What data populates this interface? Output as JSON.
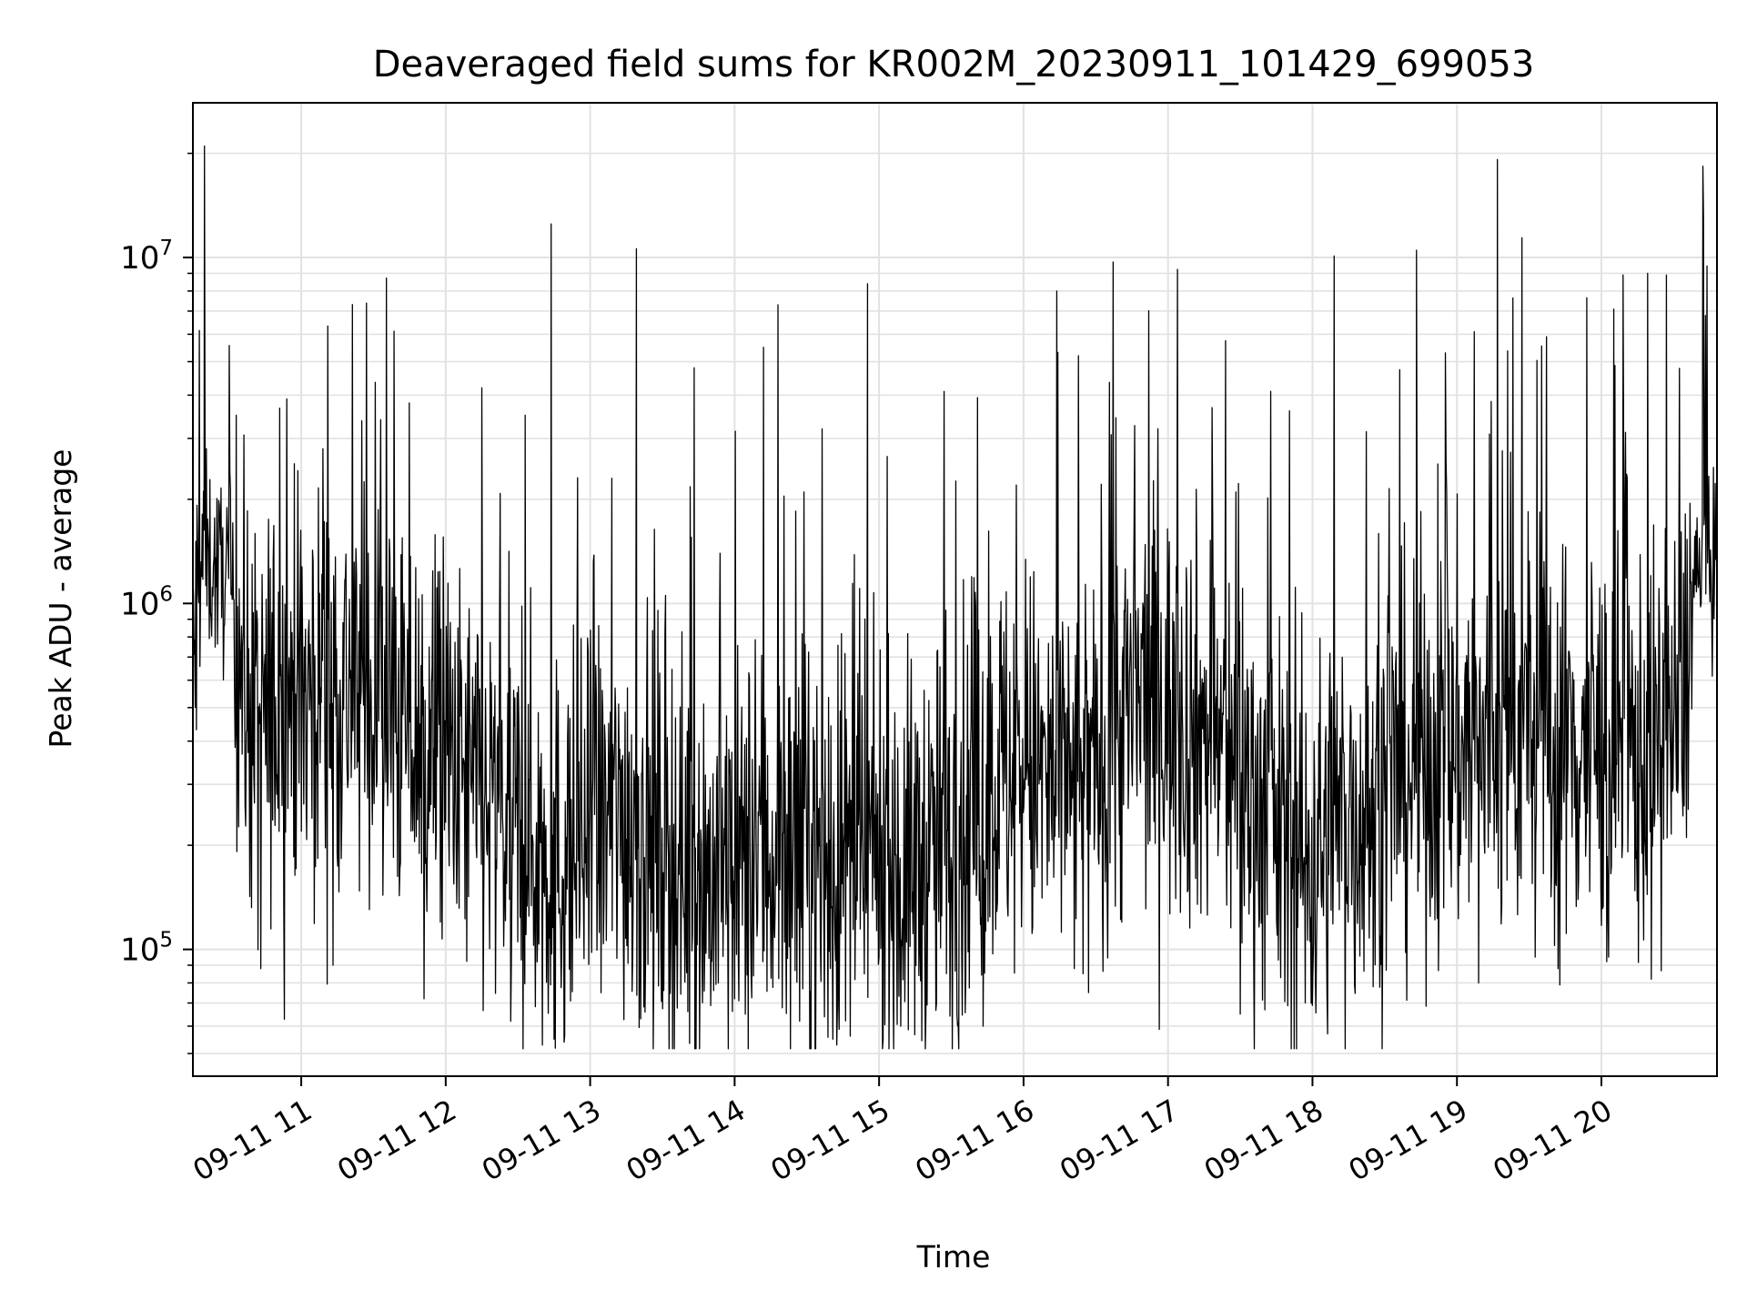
{
  "chart_data": {
    "type": "line",
    "title": "Deaveraged field sums for KR002M_20230911_101429_699053",
    "xlabel": "Time",
    "ylabel": "Peak ADU - average",
    "x_tick_labels": [
      "09-11 11",
      "09-11 12",
      "09-11 13",
      "09-11 14",
      "09-11 15",
      "09-11 16",
      "09-11 17",
      "09-11 18",
      "09-11 19",
      "09-11 20"
    ],
    "x_ticks_hours": [
      11,
      12,
      13,
      14,
      15,
      16,
      17,
      18,
      19,
      20
    ],
    "xlim_hours": [
      10.25,
      20.8
    ],
    "y_scale": "log",
    "y_tick_labels": [
      {
        "value": 100000,
        "base": "10",
        "exp": "5"
      },
      {
        "value": 1000000,
        "base": "10",
        "exp": "6"
      },
      {
        "value": 10000000,
        "base": "10",
        "exp": "7"
      }
    ],
    "ylim": [
      43000,
      28000000
    ],
    "grid": true,
    "line_color": "#000000",
    "series": [
      {
        "points": [
          [
            10.25,
            600000
          ],
          [
            10.32,
            1400000
          ],
          [
            10.4,
            1250000
          ],
          [
            10.5,
            1200000
          ],
          [
            10.6,
            600000
          ],
          [
            10.7,
            400000
          ],
          [
            10.85,
            550000
          ],
          [
            11.0,
            520000
          ],
          [
            11.2,
            600000
          ],
          [
            11.4,
            560000
          ],
          [
            11.6,
            500000
          ],
          [
            11.8,
            400000
          ],
          [
            12.0,
            350000
          ],
          [
            12.2,
            280000
          ],
          [
            12.4,
            230000
          ],
          [
            12.6,
            200000
          ],
          [
            12.8,
            180000
          ],
          [
            13.0,
            210000
          ],
          [
            13.2,
            250000
          ],
          [
            13.4,
            220000
          ],
          [
            13.6,
            180000
          ],
          [
            13.8,
            165000
          ],
          [
            14.0,
            170000
          ],
          [
            14.2,
            190000
          ],
          [
            14.4,
            200000
          ],
          [
            14.6,
            180000
          ],
          [
            14.8,
            170000
          ],
          [
            15.0,
            180000
          ],
          [
            15.2,
            170000
          ],
          [
            15.4,
            190000
          ],
          [
            15.6,
            230000
          ],
          [
            15.8,
            320000
          ],
          [
            16.0,
            330000
          ],
          [
            16.2,
            300000
          ],
          [
            16.4,
            280000
          ],
          [
            16.6,
            420000
          ],
          [
            16.8,
            520000
          ],
          [
            17.0,
            500000
          ],
          [
            17.2,
            450000
          ],
          [
            17.4,
            380000
          ],
          [
            17.6,
            280000
          ],
          [
            17.8,
            210000
          ],
          [
            18.0,
            190000
          ],
          [
            18.2,
            230000
          ],
          [
            18.4,
            270000
          ],
          [
            18.6,
            320000
          ],
          [
            18.8,
            360000
          ],
          [
            19.0,
            380000
          ],
          [
            19.2,
            400000
          ],
          [
            19.4,
            420000
          ],
          [
            19.6,
            400000
          ],
          [
            19.8,
            390000
          ],
          [
            20.0,
            380000
          ],
          [
            20.2,
            360000
          ],
          [
            20.4,
            350000
          ],
          [
            20.55,
            500000
          ],
          [
            20.65,
            1200000
          ],
          [
            20.8,
            1300000
          ]
        ],
        "spikes": [
          [
            10.33,
            21000000
          ],
          [
            10.55,
            3500000
          ],
          [
            10.9,
            3900000
          ],
          [
            11.15,
            2800000
          ],
          [
            11.55,
            3400000
          ],
          [
            11.85,
            3600000
          ],
          [
            12.25,
            4200000
          ],
          [
            12.55,
            3500000
          ],
          [
            12.73,
            12500000
          ],
          [
            13.15,
            2300000
          ],
          [
            13.32,
            10600000
          ],
          [
            13.72,
            4800000
          ],
          [
            14.2,
            5500000
          ],
          [
            14.3,
            7300000
          ],
          [
            14.48,
            2100000
          ],
          [
            14.92,
            8400000
          ],
          [
            15.45,
            4100000
          ],
          [
            15.95,
            2200000
          ],
          [
            16.23,
            8000000
          ],
          [
            16.38,
            5200000
          ],
          [
            16.62,
            9700000
          ],
          [
            16.93,
            3200000
          ],
          [
            17.47,
            2100000
          ],
          [
            17.95,
            4200000
          ],
          [
            18.15,
            10100000
          ],
          [
            18.42,
            4000000
          ],
          [
            18.72,
            10500000
          ],
          [
            18.92,
            5300000
          ],
          [
            19.12,
            6100000
          ],
          [
            19.28,
            19200000
          ],
          [
            19.45,
            11400000
          ],
          [
            19.62,
            5900000
          ],
          [
            20.15,
            8900000
          ],
          [
            20.32,
            9000000
          ],
          [
            20.45,
            8900000
          ],
          [
            20.72,
            6800000
          ]
        ],
        "dips": [
          [
            10.72,
            88000
          ],
          [
            11.22,
            90000
          ],
          [
            11.85,
            72000
          ],
          [
            12.45,
            62000
          ],
          [
            12.75,
            55000
          ],
          [
            13.35,
            63000
          ],
          [
            14.0,
            72000
          ],
          [
            14.45,
            62000
          ],
          [
            14.68,
            55000
          ],
          [
            15.15,
            60000
          ],
          [
            15.72,
            60000
          ],
          [
            16.45,
            75000
          ],
          [
            17.5,
            65000
          ],
          [
            17.95,
            70000
          ],
          [
            18.42,
            78000
          ],
          [
            19.15,
            80000
          ],
          [
            19.7,
            88000
          ],
          [
            20.05,
            95000
          ]
        ]
      }
    ]
  }
}
